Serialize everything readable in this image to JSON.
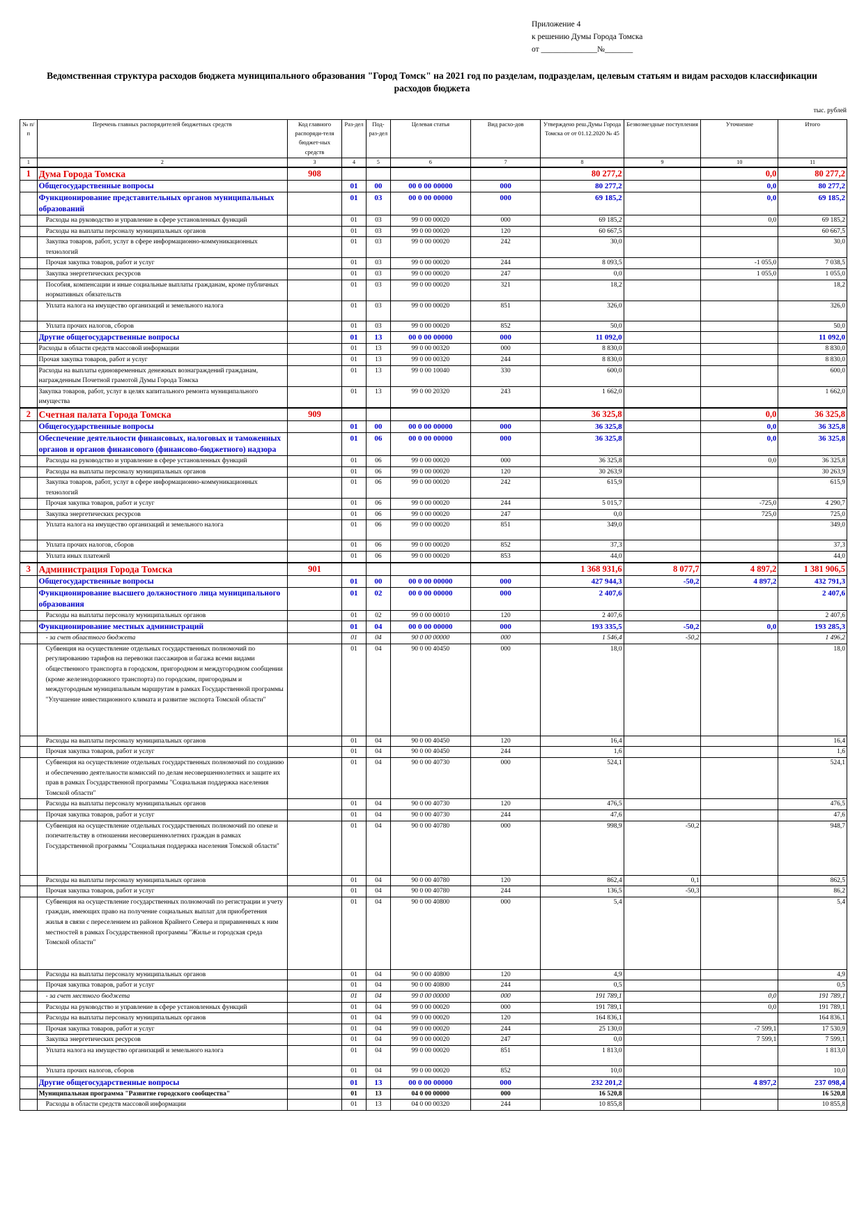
{
  "approval": {
    "line1": "Приложение 4",
    "line2": "к решению Думы Города Томска",
    "line3": "от ______________№_______"
  },
  "title": "Ведомственная структура расходов бюджета муниципального образования \"Город Томск\" на 2021 год по разделам, подразделам, целевым статьям и видам расходов классификации расходов бюджета",
  "units": "тыс. рублей",
  "header": {
    "c1": "№ п/п",
    "c2": "Перечень главных распорядителей бюджетных средств",
    "c3": "Код главного распоряди-теля бюджет-ных средств",
    "c4": "Раз-дел",
    "c5": "Под-раз-дел",
    "c6": "Целевая статья",
    "c7": "Вид расхо-дов",
    "c8": "Утверждено реш.Думы Города Томска от от 01.12.2020 № 45",
    "c9": "Безвозмездные поступления",
    "c10": "Уточнение",
    "c11": "Итого"
  },
  "col_numbers": [
    "1",
    "2",
    "3",
    "4",
    "5",
    "6",
    "7",
    "8",
    "9",
    "10",
    "11"
  ],
  "rows": [
    {
      "t": "org",
      "n": "1",
      "name": "Дума Города Томска",
      "code": "908",
      "rz": "",
      "pr": "",
      "cs": "",
      "vr": "",
      "a": "80 277,2",
      "b": "",
      "u": "0,0",
      "s": "80 277,2"
    },
    {
      "t": "sec",
      "name": "Общегосударственные вопросы",
      "rz": "01",
      "pr": "00",
      "cs": "00 0 00 00000",
      "vr": "000",
      "a": "80 277,2",
      "b": "",
      "u": "0,0",
      "s": "80 277,2"
    },
    {
      "t": "sec",
      "name": "Функционирование представительных органов муниципальных образований",
      "rz": "01",
      "pr": "03",
      "cs": "00 0 00 00000",
      "vr": "000",
      "a": "69 185,2",
      "b": "",
      "u": "0,0",
      "s": "69 185,2",
      "h": 28
    },
    {
      "t": "reg",
      "name": "Расходы на руководство и управление в сфере установленных функций",
      "rz": "01",
      "pr": "03",
      "cs": "99 0 00 00020",
      "vr": "000",
      "a": "69 185,2",
      "b": "",
      "u": "0,0",
      "s": "69 185,2"
    },
    {
      "t": "reg",
      "name": "Расходы на выплаты персоналу муниципальных органов",
      "rz": "01",
      "pr": "03",
      "cs": "99 0 00 00020",
      "vr": "120",
      "a": "60 667,5",
      "b": "",
      "u": "",
      "s": "60 667,5"
    },
    {
      "t": "reg",
      "name": "Закупка товаров, работ, услуг в сфере информационно-коммуникационных технологий",
      "rz": "01",
      "pr": "03",
      "cs": "99 0 00 00020",
      "vr": "242",
      "a": "30,0",
      "b": "",
      "u": "",
      "s": "30,0"
    },
    {
      "t": "reg",
      "name": "Прочая закупка товаров, работ и услуг",
      "rz": "01",
      "pr": "03",
      "cs": "99 0 00 00020",
      "vr": "244",
      "a": "8 093,5",
      "b": "",
      "u": "-1 055,0",
      "s": "7 038,5"
    },
    {
      "t": "reg",
      "name": "Закупка энергетических ресурсов",
      "rz": "01",
      "pr": "03",
      "cs": "99 0 00 00020",
      "vr": "247",
      "a": "0,0",
      "b": "",
      "u": "1 055,0",
      "s": "1 055,0"
    },
    {
      "t": "reg",
      "name": "Пособия, компенсации и иные социальные выплаты гражданам, кроме публичных нормативных обязательств",
      "rz": "01",
      "pr": "03",
      "cs": "99 0 00 00020",
      "vr": "321",
      "a": "18,2",
      "b": "",
      "u": "",
      "s": "18,2"
    },
    {
      "t": "reg",
      "name": "Уплата налога на имущество организаций и земельного налога",
      "rz": "01",
      "pr": "03",
      "cs": "99 0 00 00020",
      "vr": "851",
      "a": "326,0",
      "b": "",
      "u": "",
      "s": "326,0",
      "h": 29
    },
    {
      "t": "reg",
      "name": "Уплата прочих налогов, сборов",
      "rz": "01",
      "pr": "03",
      "cs": "99 0 00 00020",
      "vr": "852",
      "a": "50,0",
      "b": "",
      "u": "",
      "s": "50,0"
    },
    {
      "t": "sec",
      "name": "Другие общегосударственные вопросы",
      "rz": "01",
      "pr": "13",
      "cs": "00 0 00 00000",
      "vr": "000",
      "a": "11 092,0",
      "b": "",
      "u": "",
      "s": "11 092,0"
    },
    {
      "t": "reg",
      "f": 1,
      "name": "Расходы в области средств массовой информации",
      "rz": "01",
      "pr": "13",
      "cs": "99 0 00 00320",
      "vr": "000",
      "a": "8 830,0",
      "b": "",
      "u": "",
      "s": "8 830,0"
    },
    {
      "t": "reg",
      "f": 1,
      "name": "Прочая закупка товаров, работ и услуг",
      "rz": "01",
      "pr": "13",
      "cs": "99 0 00 00320",
      "vr": "244",
      "a": "8 830,0",
      "b": "",
      "u": "",
      "s": "8 830,0"
    },
    {
      "t": "reg",
      "f": 1,
      "name": "Расходы на выплаты единовременных денежных вознаграждений гражданам, награжденным Почетной грамотой Думы Города Томска",
      "rz": "01",
      "pr": "13",
      "cs": "99 0 00 10040",
      "vr": "330",
      "a": "600,0",
      "b": "",
      "u": "",
      "s": "600,0"
    },
    {
      "t": "reg",
      "f": 1,
      "name": "Закупка товаров, работ, услуг в целях капитального ремонта муниципального имущества",
      "rz": "01",
      "pr": "13",
      "cs": "99 0 00 20320",
      "vr": "243",
      "a": "1 662,0",
      "b": "",
      "u": "",
      "s": "1 662,0",
      "h": 30
    },
    {
      "t": "org",
      "n": "2",
      "name": "Счетная палата Города Томска",
      "code": "909",
      "rz": "",
      "pr": "",
      "cs": "",
      "vr": "",
      "a": "36 325,8",
      "b": "",
      "u": "0,0",
      "s": "36 325,8"
    },
    {
      "t": "sec",
      "name": "Общегосударственные вопросы",
      "rz": "01",
      "pr": "00",
      "cs": "00 0 00 00000",
      "vr": "000",
      "a": "36 325,8",
      "b": "",
      "u": "0,0",
      "s": "36 325,8"
    },
    {
      "t": "sec",
      "name": "Обеспечение деятельности финансовых, налоговых и таможенных органов и органов финансового (финансово-бюджетного) надзора",
      "rz": "01",
      "pr": "06",
      "cs": "00 0 00 00000",
      "vr": "000",
      "a": "36 325,8",
      "b": "",
      "u": "0,0",
      "s": "36 325,8"
    },
    {
      "t": "reg",
      "name": "Расходы на руководство и управление в сфере установленных функций",
      "rz": "01",
      "pr": "06",
      "cs": "99 0 00 00020",
      "vr": "000",
      "a": "36 325,8",
      "b": "",
      "u": "0,0",
      "s": "36 325,8"
    },
    {
      "t": "reg",
      "name": "Расходы на выплаты персоналу муниципальных органов",
      "rz": "01",
      "pr": "06",
      "cs": "99 0 00 00020",
      "vr": "120",
      "a": "30 263,9",
      "b": "",
      "u": "",
      "s": "30 263,9"
    },
    {
      "t": "reg",
      "name": "Закупка товаров, работ, услуг в сфере информационно-коммуникационных технологий",
      "rz": "01",
      "pr": "06",
      "cs": "99 0 00 00020",
      "vr": "242",
      "a": "615,9",
      "b": "",
      "u": "",
      "s": "615,9"
    },
    {
      "t": "reg",
      "name": "Прочая закупка товаров, работ и услуг",
      "rz": "01",
      "pr": "06",
      "cs": "99 0 00 00020",
      "vr": "244",
      "a": "5 015,7",
      "b": "",
      "u": "-725,0",
      "s": "4 290,7"
    },
    {
      "t": "reg",
      "name": "Закупка энергетических ресурсов",
      "rz": "01",
      "pr": "06",
      "cs": "99 0 00 00020",
      "vr": "247",
      "a": "0,0",
      "b": "",
      "u": "725,0",
      "s": "725,0"
    },
    {
      "t": "reg",
      "name": "Уплата налога на имущество организаций и земельного налога",
      "rz": "01",
      "pr": "06",
      "cs": "99 0 00 00020",
      "vr": "851",
      "a": "349,0",
      "b": "",
      "u": "",
      "s": "349,0",
      "h": 29
    },
    {
      "t": "reg",
      "name": "Уплата прочих налогов, сборов",
      "rz": "01",
      "pr": "06",
      "cs": "99 0 00 00020",
      "vr": "852",
      "a": "37,3",
      "b": "",
      "u": "",
      "s": "37,3"
    },
    {
      "t": "reg",
      "name": "Уплата иных платежей",
      "rz": "01",
      "pr": "06",
      "cs": "99 0 00 00020",
      "vr": "853",
      "a": "44,0",
      "b": "",
      "u": "",
      "s": "44,0"
    },
    {
      "t": "org",
      "n": "3",
      "name": "Администрация Города Томска",
      "code": "901",
      "rz": "",
      "pr": "",
      "cs": "",
      "vr": "",
      "a": "1 368 931,6",
      "b": "8 077,7",
      "u": "4 897,2",
      "s": "1 381 906,5"
    },
    {
      "t": "sec",
      "name": "Общегосударственные вопросы",
      "rz": "01",
      "pr": "00",
      "cs": "00 0 00 00000",
      "vr": "000",
      "a": "427 944,3",
      "b": "-50,2",
      "u": "4 897,2",
      "s": "432 791,3"
    },
    {
      "t": "sec",
      "name": "Функционирование высшего должностного лица муниципального образования",
      "rz": "01",
      "pr": "02",
      "cs": "00 0 00 00000",
      "vr": "000",
      "a": "2 407,6",
      "b": "",
      "u": "",
      "s": "2 407,6"
    },
    {
      "t": "reg",
      "name": "Расходы на выплаты персоналу муниципальных органов",
      "rz": "01",
      "pr": "02",
      "cs": "99 0 00 00010",
      "vr": "120",
      "a": "2 407,6",
      "b": "",
      "u": "",
      "s": "2 407,6"
    },
    {
      "t": "sec",
      "name": "Функционирование местных администраций",
      "rz": "01",
      "pr": "04",
      "cs": "00 0 00 00000",
      "vr": "000",
      "a": "193 335,5",
      "b": "-50,2",
      "u": "0,0",
      "s": "193 285,3"
    },
    {
      "t": "ital",
      "name": "- за счет областного бюджета",
      "rz": "01",
      "pr": "04",
      "cs": "90 0 00 00000",
      "vr": "000",
      "a": "1 546,4",
      "b": "-50,2",
      "u": "",
      "s": "1 496,2"
    },
    {
      "t": "reg",
      "name": "Субвенция на осуществление отдельных государственных полномочий по регулированию тарифов на перевозки пассажиров и багажа всеми видами общественного транспорта в городском, пригородном и междугородном сообщении (кроме железнодорожного транспорта) по городским, пригородным и междугородным муниципальным маршрутам в рамках Государственной программы \"Улучшение инвестиционного климата и развитие экспорта Томской области\"",
      "rz": "01",
      "pr": "04",
      "cs": "90 0 00 40450",
      "vr": "000",
      "a": "18,0",
      "b": "",
      "u": "",
      "s": "18,0",
      "h": 132
    },
    {
      "t": "reg",
      "name": "Расходы на выплаты персоналу муниципальных органов",
      "rz": "01",
      "pr": "04",
      "cs": "90 0 00 40450",
      "vr": "120",
      "a": "16,4",
      "b": "",
      "u": "",
      "s": "16,4"
    },
    {
      "t": "reg",
      "name": "Прочая закупка товаров, работ и услуг",
      "rz": "01",
      "pr": "04",
      "cs": "90 0 00 40450",
      "vr": "244",
      "a": "1,6",
      "b": "",
      "u": "",
      "s": "1,6"
    },
    {
      "t": "reg",
      "name": "Субвенция на осуществление отдельных государственных полномочий по созданию и обеспечению деятельности комиссий по делам несовершеннолетних и защите их прав в рамках Государственной программы \"Социальная поддержка населения Томской области\"",
      "rz": "01",
      "pr": "04",
      "cs": "90 0 00 40730",
      "vr": "000",
      "a": "524,1",
      "b": "",
      "u": "",
      "s": "524,1"
    },
    {
      "t": "reg",
      "name": "Расходы на выплаты персоналу муниципальных органов",
      "rz": "01",
      "pr": "04",
      "cs": "90 0 00 40730",
      "vr": "120",
      "a": "476,5",
      "b": "",
      "u": "",
      "s": "476,5"
    },
    {
      "t": "reg",
      "name": "Прочая закупка товаров, работ и услуг",
      "rz": "01",
      "pr": "04",
      "cs": "90 0 00 40730",
      "vr": "244",
      "a": "47,6",
      "b": "",
      "u": "",
      "s": "47,6"
    },
    {
      "t": "reg",
      "name": "Субвенция на осуществление отдельных государственных полномочий по опеке и попечительству в отношении несовершеннолетних граждан в рамках Государственной программы \"Социальная поддержка населения Томской области\"",
      "rz": "01",
      "pr": "04",
      "cs": "90 0 00 40780",
      "vr": "000",
      "a": "998,9",
      "b": "-50,2",
      "u": "",
      "s": "948,7",
      "h": 78
    },
    {
      "t": "reg",
      "name": "Расходы на выплаты персоналу муниципальных органов",
      "rz": "01",
      "pr": "04",
      "cs": "90 0 00 40780",
      "vr": "120",
      "a": "862,4",
      "b": "0,1",
      "u": "",
      "s": "862,5"
    },
    {
      "t": "reg",
      "name": "Прочая закупка товаров, работ и услуг",
      "rz": "01",
      "pr": "04",
      "cs": "90 0 00 40780",
      "vr": "244",
      "a": "136,5",
      "b": "-50,3",
      "u": "",
      "s": "86,2"
    },
    {
      "t": "reg",
      "name": "Субвенция на осуществление государственных полномочий по регистрации и учету граждан, имеющих право на получение социальных выплат для приобретения жилья в связи с переселением из районов Крайнего Севера и приравненных к ним местностей в рамках Государственной программы \"Жилье и городская среда Томской области\"",
      "rz": "01",
      "pr": "04",
      "cs": "90 0 00 40800",
      "vr": "000",
      "a": "5,4",
      "b": "",
      "u": "",
      "s": "5,4",
      "h": 104
    },
    {
      "t": "reg",
      "name": "Расходы на выплаты персоналу муниципальных органов",
      "rz": "01",
      "pr": "04",
      "cs": "90 0 00 40800",
      "vr": "120",
      "a": "4,9",
      "b": "",
      "u": "",
      "s": "4,9"
    },
    {
      "t": "reg",
      "name": "Прочая закупка товаров, работ и услуг",
      "rz": "01",
      "pr": "04",
      "cs": "90 0 00 40800",
      "vr": "244",
      "a": "0,5",
      "b": "",
      "u": "",
      "s": "0,5"
    },
    {
      "t": "ital",
      "name": "- за счет местного бюджета",
      "rz": "01",
      "pr": "04",
      "cs": "99 0 00 00000",
      "vr": "000",
      "a": "191 789,1",
      "b": "",
      "u": "0,0",
      "s": "191 789,1"
    },
    {
      "t": "reg",
      "name": "Расходы на руководство и управление в сфере установленных функций",
      "rz": "01",
      "pr": "04",
      "cs": "99 0 00 00020",
      "vr": "000",
      "a": "191 789,1",
      "b": "",
      "u": "0,0",
      "s": "191 789,1"
    },
    {
      "t": "reg",
      "name": "Расходы на выплаты персоналу муниципальных органов",
      "rz": "01",
      "pr": "04",
      "cs": "99 0 00 00020",
      "vr": "120",
      "a": "164 836,1",
      "b": "",
      "u": "",
      "s": "164 836,1"
    },
    {
      "t": "reg",
      "name": "Прочая закупка товаров, работ и услуг",
      "rz": "01",
      "pr": "04",
      "cs": "99 0 00 00020",
      "vr": "244",
      "a": "25 130,0",
      "b": "",
      "u": "-7 599,1",
      "s": "17 530,9"
    },
    {
      "t": "reg",
      "name": "Закупка энергетических ресурсов",
      "rz": "01",
      "pr": "04",
      "cs": "99 0 00 00020",
      "vr": "247",
      "a": "0,0",
      "b": "",
      "u": "7 599,1",
      "s": "7 599,1"
    },
    {
      "t": "reg",
      "name": "Уплата налога на имущество организаций и земельного налога",
      "rz": "01",
      "pr": "04",
      "cs": "99 0 00 00020",
      "vr": "851",
      "a": "1 813,0",
      "b": "",
      "u": "",
      "s": "1 813,0",
      "h": 29
    },
    {
      "t": "reg",
      "name": "Уплата прочих налогов, сборов",
      "rz": "01",
      "pr": "04",
      "cs": "99 0 00 00020",
      "vr": "852",
      "a": "10,0",
      "b": "",
      "u": "",
      "s": "10,0"
    },
    {
      "t": "sec",
      "name": "Другие общегосударственные вопросы",
      "rz": "01",
      "pr": "13",
      "cs": "00 0 00 00000",
      "vr": "000",
      "a": "232 201,2",
      "b": "",
      "u": "4 897,2",
      "s": "237 098,4"
    },
    {
      "t": "prog",
      "name": "Муниципальная программа \"Развитие городского сообщества\"",
      "rz": "01",
      "pr": "13",
      "cs": "04 0 00 00000",
      "vr": "000",
      "a": "16 520,8",
      "b": "",
      "u": "",
      "s": "16 520,8"
    },
    {
      "t": "reg",
      "name": "Расходы в области средств массовой информации",
      "rz": "01",
      "pr": "13",
      "cs": "04 0 00 00320",
      "vr": "244",
      "a": "10 855,8",
      "b": "",
      "u": "",
      "s": "10 855,8"
    }
  ]
}
